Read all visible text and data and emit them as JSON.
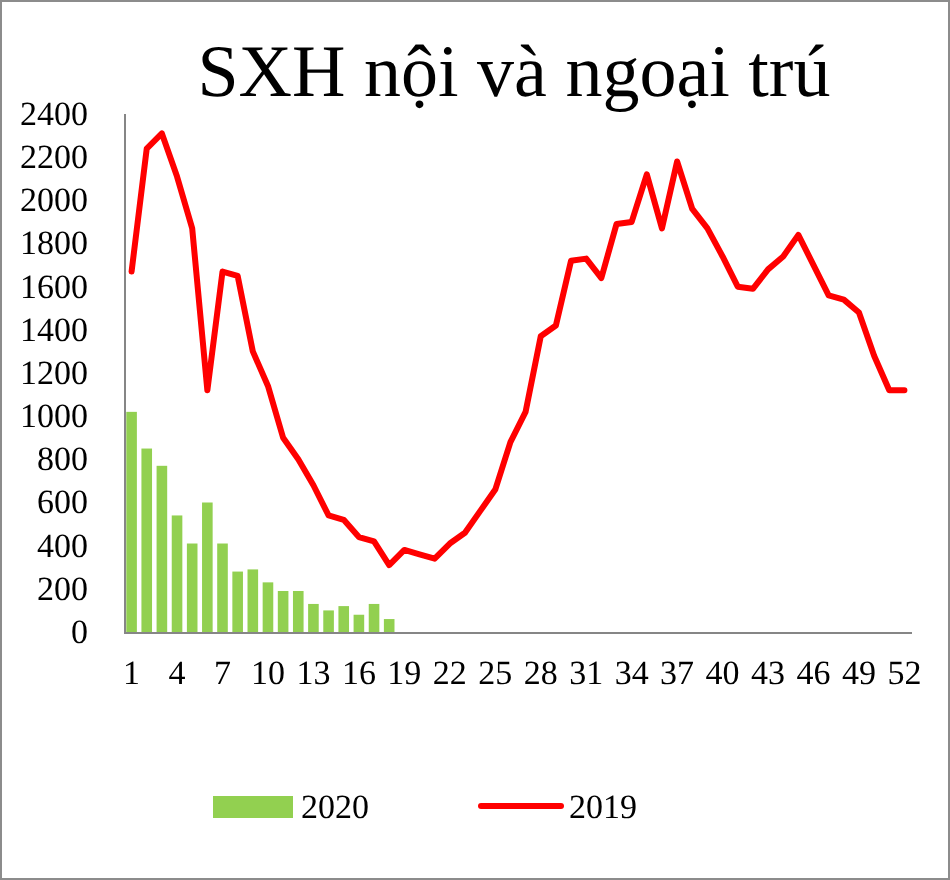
{
  "chart_data": {
    "type": "bar",
    "title": "SXH nội và ngoại trú",
    "categories": [
      "1",
      null,
      null,
      "4",
      null,
      null,
      "7",
      null,
      null,
      "10",
      null,
      null,
      "13",
      null,
      null,
      "16",
      null,
      null,
      "19",
      null,
      null,
      "22",
      null,
      null,
      "25",
      null,
      null,
      "28",
      null,
      null,
      "31",
      null,
      null,
      "34",
      null,
      null,
      "37",
      null,
      null,
      "40",
      null,
      null,
      "43",
      null,
      null,
      "46",
      null,
      null,
      "49",
      null,
      null,
      "52"
    ],
    "series": [
      {
        "name": "2020",
        "color": "#92d050",
        "values": [
          1020,
          850,
          770,
          540,
          410,
          600,
          410,
          280,
          290,
          230,
          190,
          190,
          130,
          100,
          120,
          80,
          130,
          60,
          null,
          null,
          null,
          null,
          null,
          null,
          null,
          null,
          null,
          null,
          null,
          null,
          null,
          null,
          null,
          null,
          null,
          null,
          null,
          null,
          null,
          null,
          null,
          null,
          null,
          null,
          null,
          null,
          null,
          null,
          null,
          null,
          null,
          null
        ]
      },
      {
        "name": "2019",
        "type": "line",
        "color": "#ff0000",
        "values": [
          1670,
          2240,
          2310,
          2110,
          1870,
          1120,
          1670,
          1650,
          1300,
          1140,
          900,
          800,
          680,
          540,
          520,
          440,
          420,
          310,
          380,
          360,
          340,
          410,
          460,
          560,
          660,
          880,
          1020,
          1370,
          1420,
          1720,
          1730,
          1640,
          1890,
          1900,
          2120,
          1870,
          2180,
          1960,
          1870,
          1740,
          1600,
          1590,
          1680,
          1740,
          1840,
          1700,
          1560,
          1540,
          1480,
          1280,
          1120,
          1120
        ]
      }
    ],
    "ylim": [
      0,
      2400
    ],
    "yticks": [
      0,
      200,
      400,
      600,
      800,
      1000,
      1200,
      1400,
      1600,
      1800,
      2000,
      2200,
      2400
    ],
    "legend": "bottom"
  }
}
